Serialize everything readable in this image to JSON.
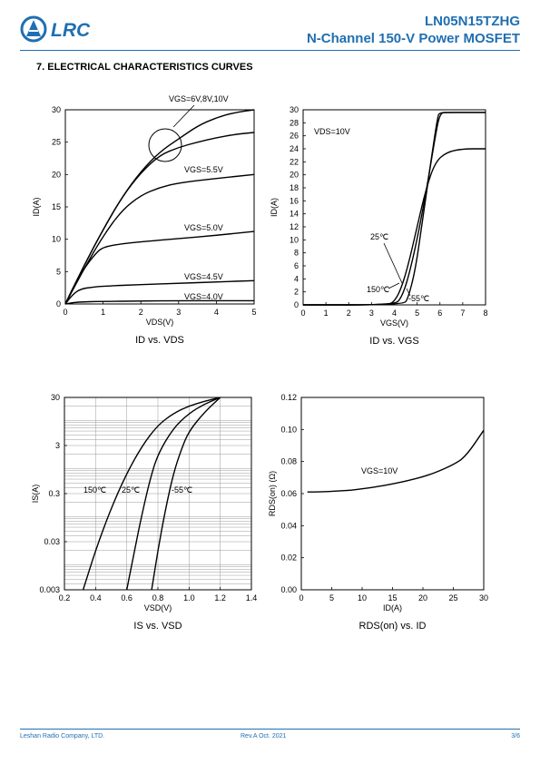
{
  "header": {
    "part_number": "LN05N15TZHG",
    "subtitle": "N-Channel 150-V Power MOSFET",
    "logo_text": "LRC"
  },
  "section_title": "7. ELECTRICAL CHARACTERISTICS CURVES",
  "footer": {
    "company": "Leshan Radio Company, LTD.",
    "revision": "Rev.A  Oct.  2021",
    "page": "3/6"
  },
  "colors": {
    "brand": "#1f6fb2"
  },
  "chart_data": [
    {
      "id": "c1",
      "type": "line",
      "title": "ID vs. VDS",
      "xlabel": "VDS(V)",
      "ylabel": "ID(A)",
      "xlim": [
        0,
        5
      ],
      "ylim": [
        0,
        30
      ],
      "xticks": [
        "0",
        "1",
        "2",
        "3",
        "4",
        "5"
      ],
      "yticks": [
        "0",
        "5",
        "10",
        "15",
        "20",
        "25",
        "30"
      ],
      "series": [
        {
          "name": "VGS=4.0V",
          "x": [
            0,
            0.3,
            1,
            2,
            3,
            4,
            5
          ],
          "y": [
            0,
            0.3,
            0.4,
            0.45,
            0.5,
            0.5,
            0.5
          ]
        },
        {
          "name": "VGS=4.5V",
          "x": [
            0,
            0.2,
            0.4,
            0.7,
            1,
            2,
            3,
            4,
            5
          ],
          "y": [
            0,
            1.5,
            2.3,
            2.6,
            2.75,
            3,
            3.2,
            3.4,
            3.6
          ]
        },
        {
          "name": "VGS=5.0V",
          "x": [
            0,
            0.2,
            0.5,
            0.8,
            1,
            1.5,
            2,
            3,
            4,
            5
          ],
          "y": [
            0,
            2.5,
            5.5,
            7.8,
            8.8,
            9.3,
            9.6,
            10.1,
            10.6,
            11.2
          ]
        },
        {
          "name": "VGS=5.5V",
          "x": [
            0,
            0.5,
            1,
            1.5,
            2,
            2.5,
            3,
            4,
            5
          ],
          "y": [
            0,
            5.5,
            10.5,
            14.5,
            16.8,
            18,
            18.7,
            19.4,
            20
          ]
        },
        {
          "name": "VGS=6V,8V,10V",
          "x": [
            0,
            0.5,
            1,
            1.5,
            2,
            2.5,
            3,
            3.5,
            4,
            4.5,
            5
          ],
          "y": [
            0,
            6,
            11.5,
            16.5,
            20.5,
            23.5,
            25.5,
            27.5,
            28.8,
            29.6,
            30
          ]
        },
        {
          "name": "",
          "x": [
            0,
            0.5,
            1,
            1.5,
            2,
            2.5,
            3,
            3.5,
            4,
            4.5,
            5
          ],
          "y": [
            0,
            6,
            11.5,
            16.5,
            20.3,
            23,
            24.2,
            25,
            25.7,
            26.2,
            26.5
          ]
        }
      ],
      "annotations": [
        "VGS=6V,8V,10V",
        "VGS=5.5V",
        "VGS=5.0V",
        "VGS=4.5V",
        "VGS=4.0V"
      ]
    },
    {
      "id": "c2",
      "type": "line",
      "title": "ID vs. VGS",
      "xlabel": "VGS(V)",
      "ylabel": "ID(A)",
      "xlim": [
        0,
        8
      ],
      "ylim": [
        0,
        30
      ],
      "xticks": [
        "0",
        "1",
        "2",
        "3",
        "4",
        "5",
        "6",
        "7",
        "8"
      ],
      "yticks": [
        "0",
        "2",
        "4",
        "6",
        "8",
        "10",
        "12",
        "14",
        "16",
        "18",
        "20",
        "22",
        "24",
        "26",
        "28",
        "30"
      ],
      "series": [
        {
          "name": "150℃",
          "x": [
            0,
            3.7,
            4,
            4.3,
            4.6,
            5,
            5.4,
            5.8,
            6.3,
            7,
            8
          ],
          "y": [
            0,
            0,
            0.5,
            2.5,
            6,
            12,
            18,
            22,
            23.5,
            24,
            24
          ]
        },
        {
          "name": "25℃",
          "x": [
            0,
            4,
            4.3,
            4.6,
            5,
            5.4,
            5.8,
            6,
            6.3,
            7,
            8
          ],
          "y": [
            0,
            0,
            1,
            4,
            10,
            17.5,
            26,
            29.5,
            29.6,
            29.6,
            29.6
          ]
        },
        {
          "name": "-55℃",
          "x": [
            0,
            4.4,
            4.6,
            4.9,
            5.2,
            5.6,
            5.9,
            6,
            6.5,
            7,
            8
          ],
          "y": [
            0,
            0,
            1,
            5,
            12,
            22,
            29,
            29.6,
            29.6,
            29.6,
            29.6
          ]
        }
      ],
      "annotations": [
        "VDS=10V",
        "25℃",
        "150℃",
        "-55℃"
      ]
    },
    {
      "id": "c3",
      "type": "line",
      "title": "IS vs. VSD",
      "xlabel": "VSD(V)",
      "ylabel": "IS(A)",
      "xlim": [
        0.2,
        1.4
      ],
      "ylim": [
        0.003,
        30
      ],
      "yscale": "log",
      "grid": true,
      "xticks": [
        "0.2",
        "0.4",
        "0.6",
        "0.8",
        "1.0",
        "1.2",
        "1.4"
      ],
      "yticks": [
        "0.003",
        "0.03",
        "0.3",
        "3",
        "30"
      ],
      "series": [
        {
          "name": "150℃",
          "x": [
            0.32,
            0.4,
            0.5,
            0.6,
            0.7,
            0.8,
            0.9,
            1.0,
            1.1,
            1.2
          ],
          "y": [
            0.003,
            0.02,
            0.15,
            0.8,
            3,
            8,
            14,
            20,
            25,
            30
          ]
        },
        {
          "name": "25℃",
          "x": [
            0.6,
            0.65,
            0.7,
            0.75,
            0.8,
            0.9,
            1.0,
            1.1,
            1.2
          ],
          "y": [
            0.003,
            0.02,
            0.12,
            0.6,
            2,
            7,
            14,
            22,
            30
          ]
        },
        {
          "name": "-55℃",
          "x": [
            0.76,
            0.8,
            0.85,
            0.9,
            0.95,
            1.0,
            1.1,
            1.2
          ],
          "y": [
            0.003,
            0.02,
            0.15,
            0.8,
            2.5,
            6,
            15,
            30
          ]
        }
      ],
      "annotations": [
        "150℃",
        "25℃",
        "-55℃"
      ]
    },
    {
      "id": "c4",
      "type": "line",
      "title": "RDS(on) vs. ID",
      "xlabel": "ID(A)",
      "ylabel": "RDS(on) (Ω)",
      "xlim": [
        0,
        30
      ],
      "ylim": [
        0,
        0.12
      ],
      "xticks": [
        "0",
        "5",
        "10",
        "15",
        "20",
        "25",
        "30"
      ],
      "yticks": [
        "0.00",
        "0.02",
        "0.04",
        "0.06",
        "0.08",
        "0.10",
        "0.12"
      ],
      "series": [
        {
          "name": "VGS=10V",
          "x": [
            1,
            3,
            5,
            8,
            10,
            12,
            15,
            18,
            20,
            22,
            25,
            27,
            30
          ],
          "y": [
            0.061,
            0.061,
            0.0615,
            0.062,
            0.063,
            0.064,
            0.066,
            0.0685,
            0.0705,
            0.073,
            0.078,
            0.083,
            0.0995
          ]
        }
      ],
      "annotations": [
        "VGS=10V"
      ]
    }
  ]
}
